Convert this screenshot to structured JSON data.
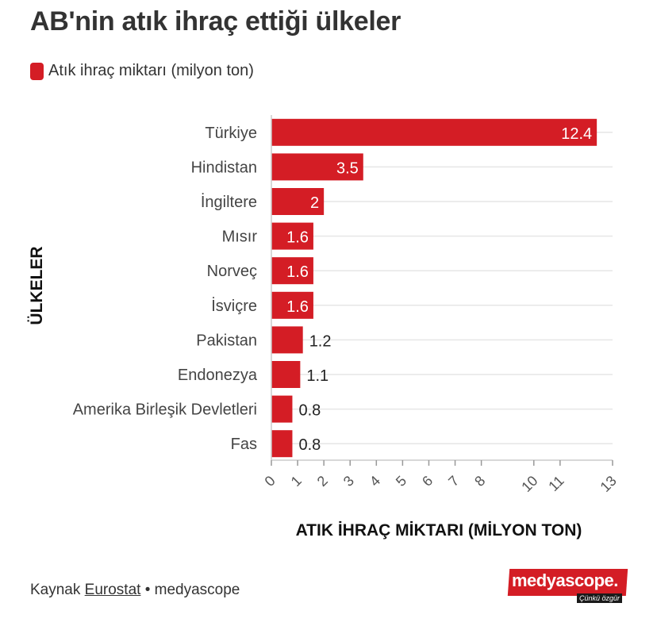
{
  "title": "AB'nin atık ihraç ettiği ülkeler",
  "legend": {
    "label": "Atık ihraç miktarı (milyon ton)",
    "color": "#d41d25"
  },
  "chart_data": {
    "type": "bar",
    "orientation": "horizontal",
    "title": "AB'nin atık ihraç ettiği ülkeler",
    "categories": [
      "Türkiye",
      "Hindistan",
      "İngiltere",
      "Mısır",
      "Norveç",
      "İsviçre",
      "Pakistan",
      "Endonezya",
      "Amerika Birleşik Devletleri",
      "Fas"
    ],
    "series": [
      {
        "name": "Atık ihraç miktarı (milyon ton)",
        "values": [
          12.4,
          3.5,
          2,
          1.6,
          1.6,
          1.6,
          1.2,
          1.1,
          0.8,
          0.8
        ],
        "color": "#d41d25"
      }
    ],
    "value_labels": [
      "12.4",
      "3.5",
      "2",
      "1.6",
      "1.6",
      "1.6",
      "1.2",
      "1.1",
      "0.8",
      "0.8"
    ],
    "xlabel": "ATIK İHRAÇ MİKTARI (MİLYON TON)",
    "ylabel": "ÜLKELER",
    "xlim": [
      0,
      13
    ],
    "xticks": [
      0,
      1,
      2,
      3,
      4,
      5,
      6,
      7,
      8,
      10,
      11,
      13
    ],
    "grid": true,
    "legend_position": "top-left"
  },
  "footer": {
    "prefix": "Kaynak",
    "source": "Eurostat",
    "separator": "•",
    "publisher": "medyascope"
  },
  "logo": {
    "word": "medyascope.",
    "tagline": "Çünkü özgür"
  }
}
